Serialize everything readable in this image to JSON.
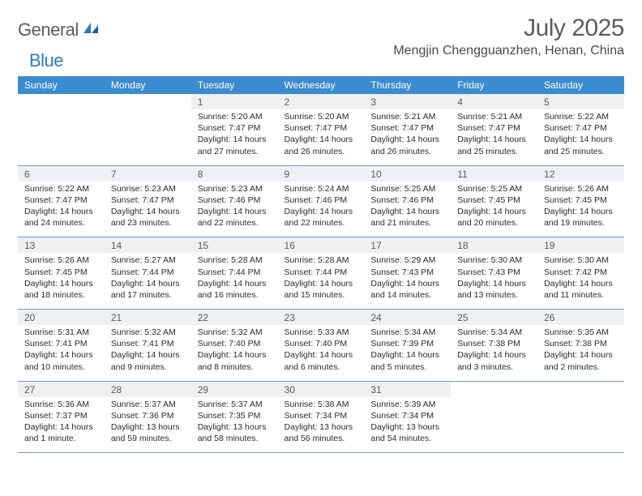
{
  "brand": {
    "word1": "General",
    "word2": "Blue"
  },
  "title": "July 2025",
  "location": "Mengjin Chengguanzhen, Henan, China",
  "colors": {
    "header_bg": "#3b8bd0",
    "header_fg": "#ffffff",
    "daynum_bg": "#eef0f2",
    "rule": "#7a98b5",
    "logo_gray": "#5a5a5a",
    "logo_blue": "#2f79c2"
  },
  "weekdays": [
    "Sunday",
    "Monday",
    "Tuesday",
    "Wednesday",
    "Thursday",
    "Friday",
    "Saturday"
  ],
  "weeks": [
    {
      "nums": [
        "",
        "",
        "1",
        "2",
        "3",
        "4",
        "5"
      ],
      "cells": [
        null,
        null,
        {
          "sr": "Sunrise: 5:20 AM",
          "ss": "Sunset: 7:47 PM",
          "d1": "Daylight: 14 hours",
          "d2": "and 27 minutes."
        },
        {
          "sr": "Sunrise: 5:20 AM",
          "ss": "Sunset: 7:47 PM",
          "d1": "Daylight: 14 hours",
          "d2": "and 26 minutes."
        },
        {
          "sr": "Sunrise: 5:21 AM",
          "ss": "Sunset: 7:47 PM",
          "d1": "Daylight: 14 hours",
          "d2": "and 26 minutes."
        },
        {
          "sr": "Sunrise: 5:21 AM",
          "ss": "Sunset: 7:47 PM",
          "d1": "Daylight: 14 hours",
          "d2": "and 25 minutes."
        },
        {
          "sr": "Sunrise: 5:22 AM",
          "ss": "Sunset: 7:47 PM",
          "d1": "Daylight: 14 hours",
          "d2": "and 25 minutes."
        }
      ]
    },
    {
      "nums": [
        "6",
        "7",
        "8",
        "9",
        "10",
        "11",
        "12"
      ],
      "cells": [
        {
          "sr": "Sunrise: 5:22 AM",
          "ss": "Sunset: 7:47 PM",
          "d1": "Daylight: 14 hours",
          "d2": "and 24 minutes."
        },
        {
          "sr": "Sunrise: 5:23 AM",
          "ss": "Sunset: 7:47 PM",
          "d1": "Daylight: 14 hours",
          "d2": "and 23 minutes."
        },
        {
          "sr": "Sunrise: 5:23 AM",
          "ss": "Sunset: 7:46 PM",
          "d1": "Daylight: 14 hours",
          "d2": "and 22 minutes."
        },
        {
          "sr": "Sunrise: 5:24 AM",
          "ss": "Sunset: 7:46 PM",
          "d1": "Daylight: 14 hours",
          "d2": "and 22 minutes."
        },
        {
          "sr": "Sunrise: 5:25 AM",
          "ss": "Sunset: 7:46 PM",
          "d1": "Daylight: 14 hours",
          "d2": "and 21 minutes."
        },
        {
          "sr": "Sunrise: 5:25 AM",
          "ss": "Sunset: 7:45 PM",
          "d1": "Daylight: 14 hours",
          "d2": "and 20 minutes."
        },
        {
          "sr": "Sunrise: 5:26 AM",
          "ss": "Sunset: 7:45 PM",
          "d1": "Daylight: 14 hours",
          "d2": "and 19 minutes."
        }
      ]
    },
    {
      "nums": [
        "13",
        "14",
        "15",
        "16",
        "17",
        "18",
        "19"
      ],
      "cells": [
        {
          "sr": "Sunrise: 5:26 AM",
          "ss": "Sunset: 7:45 PM",
          "d1": "Daylight: 14 hours",
          "d2": "and 18 minutes."
        },
        {
          "sr": "Sunrise: 5:27 AM",
          "ss": "Sunset: 7:44 PM",
          "d1": "Daylight: 14 hours",
          "d2": "and 17 minutes."
        },
        {
          "sr": "Sunrise: 5:28 AM",
          "ss": "Sunset: 7:44 PM",
          "d1": "Daylight: 14 hours",
          "d2": "and 16 minutes."
        },
        {
          "sr": "Sunrise: 5:28 AM",
          "ss": "Sunset: 7:44 PM",
          "d1": "Daylight: 14 hours",
          "d2": "and 15 minutes."
        },
        {
          "sr": "Sunrise: 5:29 AM",
          "ss": "Sunset: 7:43 PM",
          "d1": "Daylight: 14 hours",
          "d2": "and 14 minutes."
        },
        {
          "sr": "Sunrise: 5:30 AM",
          "ss": "Sunset: 7:43 PM",
          "d1": "Daylight: 14 hours",
          "d2": "and 13 minutes."
        },
        {
          "sr": "Sunrise: 5:30 AM",
          "ss": "Sunset: 7:42 PM",
          "d1": "Daylight: 14 hours",
          "d2": "and 11 minutes."
        }
      ]
    },
    {
      "nums": [
        "20",
        "21",
        "22",
        "23",
        "24",
        "25",
        "26"
      ],
      "cells": [
        {
          "sr": "Sunrise: 5:31 AM",
          "ss": "Sunset: 7:41 PM",
          "d1": "Daylight: 14 hours",
          "d2": "and 10 minutes."
        },
        {
          "sr": "Sunrise: 5:32 AM",
          "ss": "Sunset: 7:41 PM",
          "d1": "Daylight: 14 hours",
          "d2": "and 9 minutes."
        },
        {
          "sr": "Sunrise: 5:32 AM",
          "ss": "Sunset: 7:40 PM",
          "d1": "Daylight: 14 hours",
          "d2": "and 8 minutes."
        },
        {
          "sr": "Sunrise: 5:33 AM",
          "ss": "Sunset: 7:40 PM",
          "d1": "Daylight: 14 hours",
          "d2": "and 6 minutes."
        },
        {
          "sr": "Sunrise: 5:34 AM",
          "ss": "Sunset: 7:39 PM",
          "d1": "Daylight: 14 hours",
          "d2": "and 5 minutes."
        },
        {
          "sr": "Sunrise: 5:34 AM",
          "ss": "Sunset: 7:38 PM",
          "d1": "Daylight: 14 hours",
          "d2": "and 3 minutes."
        },
        {
          "sr": "Sunrise: 5:35 AM",
          "ss": "Sunset: 7:38 PM",
          "d1": "Daylight: 14 hours",
          "d2": "and 2 minutes."
        }
      ]
    },
    {
      "nums": [
        "27",
        "28",
        "29",
        "30",
        "31",
        "",
        ""
      ],
      "cells": [
        {
          "sr": "Sunrise: 5:36 AM",
          "ss": "Sunset: 7:37 PM",
          "d1": "Daylight: 14 hours",
          "d2": "and 1 minute."
        },
        {
          "sr": "Sunrise: 5:37 AM",
          "ss": "Sunset: 7:36 PM",
          "d1": "Daylight: 13 hours",
          "d2": "and 59 minutes."
        },
        {
          "sr": "Sunrise: 5:37 AM",
          "ss": "Sunset: 7:35 PM",
          "d1": "Daylight: 13 hours",
          "d2": "and 58 minutes."
        },
        {
          "sr": "Sunrise: 5:38 AM",
          "ss": "Sunset: 7:34 PM",
          "d1": "Daylight: 13 hours",
          "d2": "and 56 minutes."
        },
        {
          "sr": "Sunrise: 5:39 AM",
          "ss": "Sunset: 7:34 PM",
          "d1": "Daylight: 13 hours",
          "d2": "and 54 minutes."
        },
        null,
        null
      ]
    }
  ]
}
